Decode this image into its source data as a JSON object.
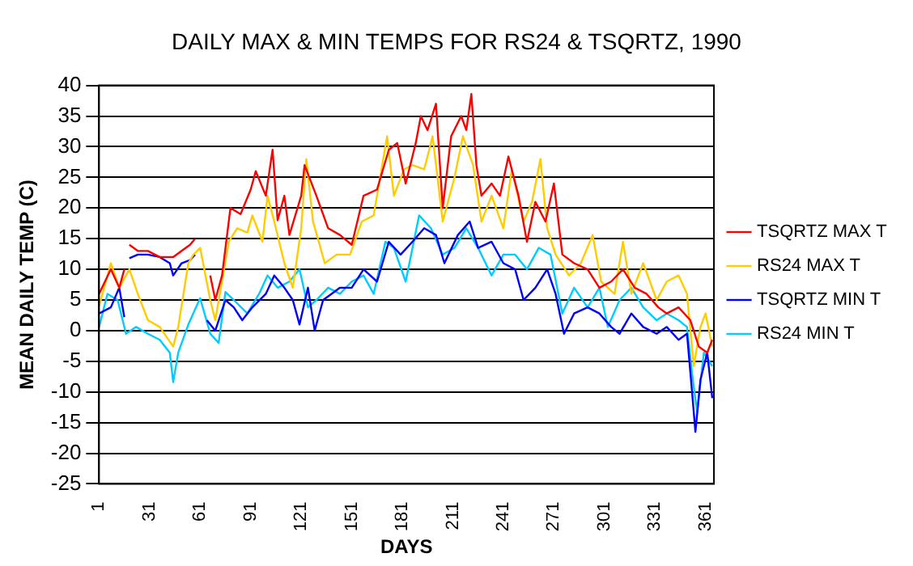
{
  "chart_data": {
    "type": "line",
    "title": "DAILY MAX & MIN TEMPS FOR RS24 & TSQRTZ, 1990",
    "xlabel": "DAYS",
    "ylabel": "MEAN DAILY TEMP (C)",
    "xlim": [
      1,
      366
    ],
    "xticks": [
      1,
      31,
      61,
      91,
      121,
      151,
      181,
      211,
      241,
      271,
      301,
      331,
      361
    ],
    "ylim": [
      -25,
      40
    ],
    "yticks": [
      -25,
      -20,
      -15,
      -10,
      -5,
      0,
      5,
      10,
      15,
      20,
      25,
      30,
      35,
      40
    ],
    "grid": "y",
    "legend": "right",
    "marker": "none",
    "line_style": "solid",
    "series": [
      {
        "name": "TSQRTZ MAX T",
        "color": "#ff0000",
        "x": [
          1,
          8,
          13,
          16,
          17,
          19,
          24,
          30,
          37,
          45,
          50,
          55,
          58,
          60,
          63,
          67,
          70,
          74,
          79,
          85,
          91,
          94,
          100,
          104,
          107,
          111,
          114,
          121,
          123,
          130,
          137,
          144,
          151,
          158,
          166,
          173,
          178,
          183,
          189,
          192,
          196,
          201,
          205,
          210,
          216,
          219,
          222,
          225,
          228,
          234,
          239,
          244,
          250,
          255,
          260,
          266,
          271,
          276,
          283,
          291,
          298,
          305,
          312,
          319,
          326,
          333,
          338,
          345,
          352,
          357,
          362,
          365
        ],
        "values": [
          6,
          10,
          7,
          10,
          null,
          14,
          13,
          13,
          12,
          12,
          13,
          14,
          15,
          null,
          null,
          9,
          5,
          9,
          20,
          19,
          23,
          26,
          22,
          29.5,
          18,
          22,
          15.6,
          22,
          27,
          22,
          16.7,
          15.6,
          14,
          22,
          23,
          29.5,
          30.6,
          24,
          30.6,
          35,
          32.7,
          37,
          20,
          31.7,
          35,
          32.7,
          38.6,
          27,
          22,
          24,
          22,
          28.4,
          22,
          14.5,
          21,
          17.8,
          24,
          12.4,
          11,
          10,
          7,
          8,
          10,
          7,
          6,
          3.8,
          2.8,
          3.8,
          1.7,
          -2.6,
          -3.6,
          -1.5
        ]
      },
      {
        "name": "RS24 MAX T",
        "color": "#ffcc00",
        "x": [
          1,
          8,
          13,
          19,
          24,
          30,
          37,
          45,
          48,
          54,
          57,
          61,
          67,
          70,
          74,
          78,
          83,
          89,
          92,
          98,
          101,
          105,
          111,
          116,
          121,
          124,
          128,
          135,
          142,
          150,
          157,
          164,
          172,
          176,
          182,
          187,
          194,
          199,
          205,
          212,
          217,
          223,
          228,
          234,
          241,
          246,
          253,
          258,
          263,
          267,
          272,
          280,
          287,
          294,
          299,
          307,
          312,
          317,
          324,
          332,
          338,
          345,
          350,
          354,
          358,
          361,
          365
        ],
        "values": [
          4,
          11,
          7,
          10,
          6,
          1.7,
          0.6,
          -2.6,
          0.6,
          11,
          12.4,
          13.5,
          5,
          1.7,
          8.1,
          14.5,
          16.7,
          16,
          18.8,
          14.5,
          22,
          17.8,
          11,
          7,
          16.7,
          28,
          17.8,
          11,
          12.4,
          12.4,
          17.8,
          18.8,
          31.7,
          22,
          26.3,
          27,
          26.3,
          31.7,
          17.8,
          25,
          31.7,
          27,
          17.8,
          22,
          16.7,
          26.3,
          17.8,
          21,
          28,
          16.7,
          12.4,
          9,
          11,
          15.6,
          8,
          6,
          14.5,
          6,
          11,
          5,
          8,
          9,
          6,
          -5.8,
          0.6,
          2.8,
          -2.6
        ]
      },
      {
        "name": "TSQRTZ MIN T",
        "color": "#0000ff",
        "x": [
          1,
          8,
          13,
          16,
          17,
          19,
          24,
          30,
          37,
          43,
          45,
          50,
          55,
          58,
          60,
          63,
          65,
          70,
          76,
          81,
          86,
          92,
          100,
          105,
          111,
          116,
          120,
          125,
          129,
          134,
          139,
          144,
          151,
          158,
          166,
          173,
          180,
          187,
          194,
          201,
          206,
          214,
          221,
          226,
          234,
          241,
          248,
          253,
          260,
          267,
          272,
          277,
          283,
          291,
          298,
          305,
          310,
          317,
          324,
          332,
          338,
          345,
          350,
          353,
          355,
          358,
          362,
          365
        ],
        "values": [
          2.8,
          3.8,
          7,
          2.2,
          null,
          11.8,
          12.4,
          12.4,
          12,
          11,
          9,
          11,
          11.5,
          12.4,
          null,
          null,
          1.7,
          0,
          5,
          3.8,
          1.7,
          3.8,
          6,
          9,
          7,
          5,
          1,
          7,
          0,
          5,
          6,
          7,
          7,
          10,
          8,
          14.5,
          12.4,
          14.5,
          16.7,
          15.6,
          11,
          15.6,
          17.8,
          13.5,
          14.5,
          11,
          10,
          5,
          7,
          10,
          6,
          -0.5,
          2.8,
          3.8,
          2.8,
          0.6,
          -0.5,
          2.8,
          0.6,
          -0.5,
          0.6,
          -1.5,
          -0.5,
          -10,
          -16.5,
          -8,
          -3.6,
          -11
        ]
      },
      {
        "name": "RS24 MIN T",
        "color": "#00ccff",
        "x": [
          1,
          6,
          12,
          17,
          23,
          30,
          37,
          43,
          45,
          48,
          54,
          61,
          67,
          72,
          76,
          81,
          89,
          96,
          101,
          107,
          114,
          120,
          125,
          130,
          137,
          144,
          151,
          158,
          164,
          171,
          176,
          183,
          191,
          198,
          205,
          212,
          219,
          226,
          234,
          241,
          248,
          255,
          262,
          269,
          276,
          283,
          291,
          298,
          303,
          310,
          317,
          324,
          332,
          338,
          345,
          350,
          353,
          356,
          360,
          365
        ],
        "values": [
          0.6,
          6,
          5,
          -0.5,
          0.6,
          -0.5,
          -1.5,
          -3.6,
          -8.4,
          -3.6,
          1,
          5.3,
          -0.5,
          -2,
          6.3,
          5,
          2.8,
          6,
          9,
          7,
          8,
          10,
          3.8,
          5,
          7,
          6,
          8,
          9,
          6,
          14.5,
          13.5,
          8,
          18.8,
          16.7,
          12.4,
          13.5,
          16.7,
          13.5,
          9,
          12.4,
          12.4,
          10,
          13.5,
          12.4,
          2.8,
          7,
          3.8,
          7,
          0.6,
          5,
          7,
          3.8,
          1.7,
          2.8,
          1.7,
          0.6,
          -7,
          -13.3,
          -3.6,
          -5.8
        ]
      }
    ]
  }
}
